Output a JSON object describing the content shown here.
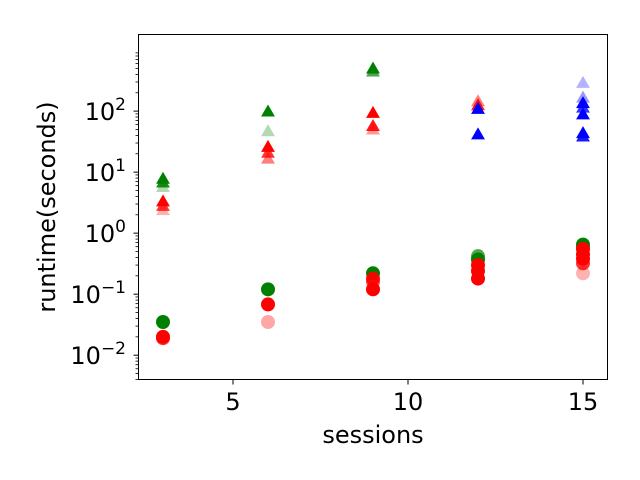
{
  "chart_data": {
    "type": "scatter",
    "title": "",
    "xlabel": "sessions",
    "ylabel": "runtime(seconds)",
    "xlim": [
      2.3,
      15.7
    ],
    "ylim": [
      0.004,
      1800
    ],
    "yscale": "log",
    "grid": false,
    "legend": "none",
    "x_ticks": [
      {
        "value": 5,
        "label": "5"
      },
      {
        "value": 10,
        "label": "10"
      },
      {
        "value": 15,
        "label": "15"
      }
    ],
    "y_ticks": [
      {
        "value": 0.01,
        "base": "10",
        "exp": "−2"
      },
      {
        "value": 0.1,
        "base": "10",
        "exp": "−1"
      },
      {
        "value": 1,
        "base": "10",
        "exp": "0"
      },
      {
        "value": 10,
        "base": "10",
        "exp": "1"
      },
      {
        "value": 100,
        "base": "10",
        "exp": "2"
      }
    ],
    "series": [
      {
        "marker": "triangle",
        "color": "#008000",
        "points": [
          {
            "x": 3,
            "y": 7.5,
            "alpha": 1
          },
          {
            "x": 3,
            "y": 6.5,
            "alpha": 0.9
          },
          {
            "x": 3,
            "y": 5.5,
            "alpha": 0.3
          },
          {
            "x": 6,
            "y": 95,
            "alpha": 1
          },
          {
            "x": 6,
            "y": 45,
            "alpha": 0.3
          },
          {
            "x": 9,
            "y": 480,
            "alpha": 1
          },
          {
            "x": 9,
            "y": 430,
            "alpha": 0.7
          }
        ]
      },
      {
        "marker": "triangle",
        "color": "#ff0000",
        "points": [
          {
            "x": 3,
            "y": 3.2,
            "alpha": 1
          },
          {
            "x": 3,
            "y": 2.7,
            "alpha": 0.8
          },
          {
            "x": 3,
            "y": 2.3,
            "alpha": 0.3
          },
          {
            "x": 6,
            "y": 25,
            "alpha": 1
          },
          {
            "x": 6,
            "y": 20,
            "alpha": 0.8
          },
          {
            "x": 6,
            "y": 16,
            "alpha": 0.5
          },
          {
            "x": 9,
            "y": 90,
            "alpha": 1
          },
          {
            "x": 9,
            "y": 55,
            "alpha": 0.9
          },
          {
            "x": 9,
            "y": 48,
            "alpha": 0.4
          },
          {
            "x": 12,
            "y": 140,
            "alpha": 0.5
          },
          {
            "x": 12,
            "y": 120,
            "alpha": 0.9
          }
        ]
      },
      {
        "marker": "triangle",
        "color": "#0000ff",
        "points": [
          {
            "x": 12,
            "y": 105,
            "alpha": 1
          },
          {
            "x": 12,
            "y": 40,
            "alpha": 1
          },
          {
            "x": 15,
            "y": 280,
            "alpha": 0.3
          },
          {
            "x": 15,
            "y": 160,
            "alpha": 0.4
          },
          {
            "x": 15,
            "y": 130,
            "alpha": 1
          },
          {
            "x": 15,
            "y": 110,
            "alpha": 0.8
          },
          {
            "x": 15,
            "y": 85,
            "alpha": 1
          },
          {
            "x": 15,
            "y": 42,
            "alpha": 1
          },
          {
            "x": 15,
            "y": 37,
            "alpha": 0.9
          }
        ]
      },
      {
        "marker": "circle",
        "color": "#008000",
        "points": [
          {
            "x": 3,
            "y": 0.035,
            "alpha": 1
          },
          {
            "x": 6,
            "y": 0.12,
            "alpha": 1
          },
          {
            "x": 9,
            "y": 0.22,
            "alpha": 1
          },
          {
            "x": 12,
            "y": 0.42,
            "alpha": 0.7
          },
          {
            "x": 12,
            "y": 0.37,
            "alpha": 1
          },
          {
            "x": 15,
            "y": 0.65,
            "alpha": 1
          },
          {
            "x": 15,
            "y": 0.6,
            "alpha": 0.8
          }
        ]
      },
      {
        "marker": "circle",
        "color": "#ff0000",
        "points": [
          {
            "x": 3,
            "y": 0.02,
            "alpha": 1
          },
          {
            "x": 3,
            "y": 0.019,
            "alpha": 0.8
          },
          {
            "x": 6,
            "y": 0.068,
            "alpha": 1
          },
          {
            "x": 6,
            "y": 0.035,
            "alpha": 0.35
          },
          {
            "x": 9,
            "y": 0.18,
            "alpha": 0.9
          },
          {
            "x": 9,
            "y": 0.16,
            "alpha": 0.7
          },
          {
            "x": 9,
            "y": 0.12,
            "alpha": 1
          },
          {
            "x": 12,
            "y": 0.3,
            "alpha": 1
          },
          {
            "x": 12,
            "y": 0.24,
            "alpha": 1
          },
          {
            "x": 12,
            "y": 0.18,
            "alpha": 1
          },
          {
            "x": 15,
            "y": 0.55,
            "alpha": 1
          },
          {
            "x": 15,
            "y": 0.45,
            "alpha": 1
          },
          {
            "x": 15,
            "y": 0.38,
            "alpha": 1
          },
          {
            "x": 15,
            "y": 0.32,
            "alpha": 0.8
          },
          {
            "x": 15,
            "y": 0.22,
            "alpha": 0.3
          }
        ]
      }
    ]
  }
}
